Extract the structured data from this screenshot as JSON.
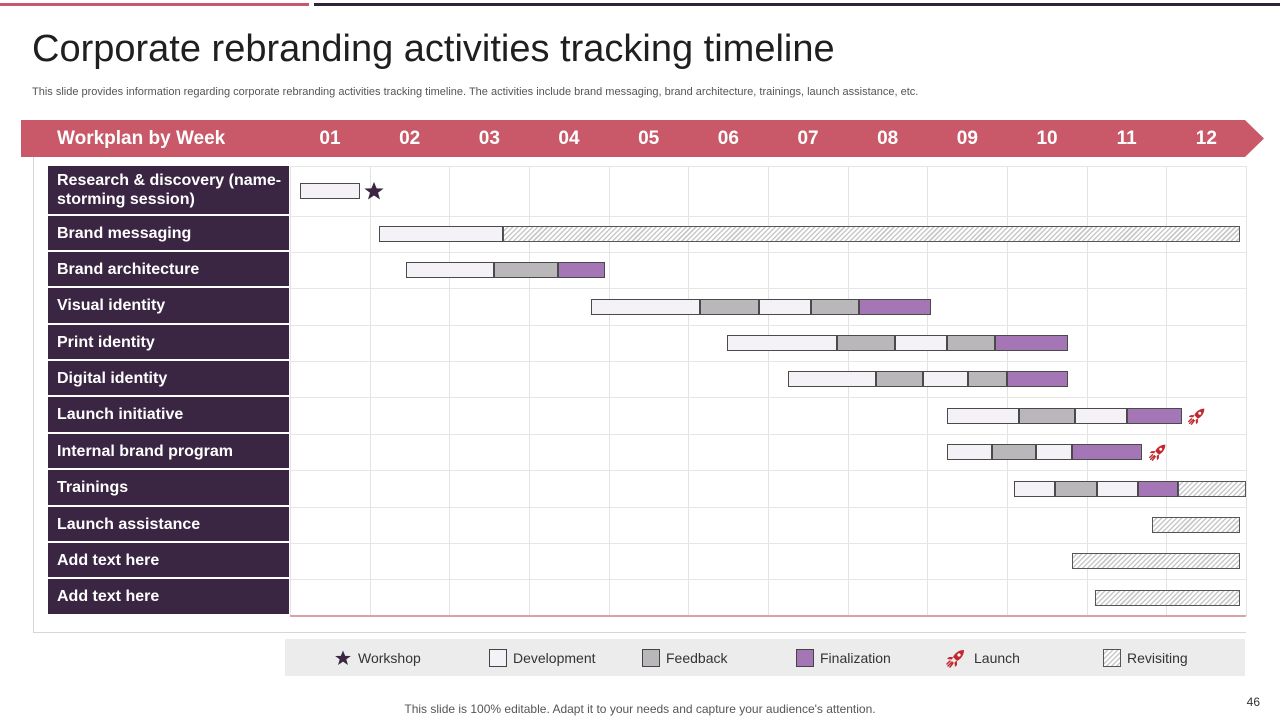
{
  "title": "Corporate rebranding activities tracking timeline",
  "subtitle": "This slide provides information regarding corporate rebranding activities tracking timeline. The activities include brand messaging, brand architecture, trainings, launch assistance, etc.",
  "header": {
    "title": "Workplan by Week",
    "weeks": [
      "01",
      "02",
      "03",
      "04",
      "05",
      "06",
      "07",
      "08",
      "09",
      "10",
      "11",
      "12"
    ]
  },
  "colors": {
    "header_band": "#c95968",
    "row_label_bg": "#3a2542",
    "development": "#f4f2f6",
    "feedback": "#b9b7b9",
    "finalization": "#a476b6",
    "marker_star": "#3a2542",
    "marker_launch": "#c4262e"
  },
  "tasks": [
    {
      "label": "Research & discovery (name-storming session)",
      "segments": [
        {
          "type": "development",
          "start": 0.12,
          "end": 0.88
        }
      ],
      "marker": {
        "type": "workshop",
        "at": 1.06
      }
    },
    {
      "label": "Brand messaging",
      "segments": [
        {
          "type": "development",
          "start": 1.12,
          "end": 2.67
        },
        {
          "type": "revisiting",
          "start": 2.67,
          "end": 11.93
        }
      ]
    },
    {
      "label": "Brand architecture",
      "segments": [
        {
          "type": "development",
          "start": 1.45,
          "end": 2.56
        },
        {
          "type": "feedback",
          "start": 2.56,
          "end": 3.36
        },
        {
          "type": "finalization",
          "start": 3.36,
          "end": 3.96
        }
      ]
    },
    {
      "label": "Visual identity",
      "segments": [
        {
          "type": "development",
          "start": 3.78,
          "end": 5.15
        },
        {
          "type": "feedback",
          "start": 5.15,
          "end": 5.89
        },
        {
          "type": "development",
          "start": 5.89,
          "end": 6.54
        },
        {
          "type": "feedback",
          "start": 6.54,
          "end": 7.14
        },
        {
          "type": "finalization",
          "start": 7.14,
          "end": 8.04
        }
      ]
    },
    {
      "label": "Print identity",
      "segments": [
        {
          "type": "development",
          "start": 5.48,
          "end": 6.87
        },
        {
          "type": "feedback",
          "start": 6.87,
          "end": 7.59
        },
        {
          "type": "development",
          "start": 7.59,
          "end": 8.25
        },
        {
          "type": "feedback",
          "start": 8.25,
          "end": 8.85
        },
        {
          "type": "finalization",
          "start": 8.85,
          "end": 9.76
        }
      ]
    },
    {
      "label": "Digital identity",
      "segments": [
        {
          "type": "development",
          "start": 6.25,
          "end": 7.35
        },
        {
          "type": "feedback",
          "start": 7.35,
          "end": 7.95
        },
        {
          "type": "development",
          "start": 7.95,
          "end": 8.51
        },
        {
          "type": "feedback",
          "start": 8.51,
          "end": 9.0
        },
        {
          "type": "finalization",
          "start": 9.0,
          "end": 9.76
        }
      ]
    },
    {
      "label": "Launch initiative",
      "segments": [
        {
          "type": "development",
          "start": 8.25,
          "end": 9.15
        },
        {
          "type": "feedback",
          "start": 9.15,
          "end": 9.85
        },
        {
          "type": "development",
          "start": 9.85,
          "end": 10.51
        },
        {
          "type": "finalization",
          "start": 10.51,
          "end": 11.19
        }
      ],
      "marker": {
        "type": "launch",
        "at": 11.38
      }
    },
    {
      "label": "Internal brand program",
      "segments": [
        {
          "type": "development",
          "start": 8.25,
          "end": 8.81
        },
        {
          "type": "feedback",
          "start": 8.81,
          "end": 9.36
        },
        {
          "type": "development",
          "start": 9.36,
          "end": 9.82
        },
        {
          "type": "finalization",
          "start": 9.82,
          "end": 10.69
        }
      ],
      "marker": {
        "type": "launch",
        "at": 10.89
      }
    },
    {
      "label": "Trainings",
      "segments": [
        {
          "type": "development",
          "start": 9.09,
          "end": 9.6
        },
        {
          "type": "feedback",
          "start": 9.6,
          "end": 10.13
        },
        {
          "type": "development",
          "start": 10.13,
          "end": 10.64
        },
        {
          "type": "finalization",
          "start": 10.64,
          "end": 11.15
        },
        {
          "type": "revisiting",
          "start": 11.15,
          "end": 12.0
        }
      ]
    },
    {
      "label": "Launch assistance",
      "segments": [
        {
          "type": "revisiting",
          "start": 10.82,
          "end": 11.93
        }
      ]
    },
    {
      "label": "Add text here",
      "segments": [
        {
          "type": "revisiting",
          "start": 9.82,
          "end": 11.93
        }
      ]
    },
    {
      "label": "Add text here",
      "segments": [
        {
          "type": "revisiting",
          "start": 10.11,
          "end": 11.93
        }
      ]
    }
  ],
  "legend": {
    "workshop": "Workshop",
    "development": "Development",
    "feedback": "Feedback",
    "finalization": "Finalization",
    "launch": "Launch",
    "revisiting": "Revisiting"
  },
  "footer": "This slide is 100% editable. Adapt it to your needs and capture your audience's attention.",
  "page_number": "46"
}
